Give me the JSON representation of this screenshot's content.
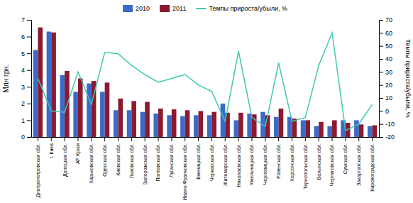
{
  "chart_data": {
    "type": "bar",
    "categories": [
      "Днепропетровская обл.",
      "г. Киев",
      "Донецкая обл.",
      "АР Крым",
      "Харьковская обл.",
      "Одесская обл.",
      "Киевская обл.",
      "Львовская обл.",
      "Запорожская обл.",
      "Полтавская обл.",
      "Луганская обл.",
      "Ивано-Франковская обл.",
      "Винницкая обл.",
      "Черкасская обл.",
      "Житомирская обл.",
      "Николаевская обл.",
      "Хмельницкая обл.",
      "Черновицкая обл.",
      "Ровенская обл.",
      "Херсонская обл.",
      "Тернопольская обл.",
      "Волынская обл.",
      "Черниговская обл.",
      "Сумская обл.",
      "Закарпатская обл.",
      "Кировоградская обл."
    ],
    "series": [
      {
        "name": "2010",
        "color": "#3b6bc9",
        "values": [
          5.2,
          6.3,
          3.7,
          2.7,
          3.2,
          2.7,
          1.6,
          1.6,
          1.5,
          1.4,
          1.3,
          1.25,
          1.3,
          1.3,
          2.0,
          1.0,
          1.4,
          1.5,
          1.2,
          1.2,
          1.0,
          0.65,
          0.65,
          1.0,
          1.0,
          0.65
        ]
      },
      {
        "name": "2011",
        "color": "#8b1a2e",
        "values": [
          6.55,
          6.25,
          3.95,
          3.5,
          3.35,
          3.25,
          2.3,
          2.15,
          2.1,
          1.7,
          1.65,
          1.6,
          1.55,
          1.5,
          1.45,
          1.45,
          1.35,
          1.3,
          1.7,
          1.1,
          1.0,
          0.9,
          1.0,
          0.85,
          0.75,
          0.7
        ]
      },
      {
        "name": "Темпы прироста/убыли, %",
        "color": "#40c8b0",
        "type": "line",
        "axis": "y2",
        "values": [
          25,
          0,
          -1,
          30,
          5,
          45,
          44,
          35,
          28,
          22,
          25,
          28,
          20,
          15,
          -8,
          46,
          -5,
          -12,
          37,
          -8,
          -5,
          35,
          60,
          -15,
          -10,
          5
        ]
      }
    ],
    "ylabel": "Млн грн.",
    "y2label": "Темпы прироста/убыли, %",
    "ylim": [
      0,
      7
    ],
    "yticks": [
      0,
      1,
      2,
      3,
      4,
      5,
      6,
      7
    ],
    "y2lim": [
      -20,
      70
    ],
    "y2ticks": [
      -20,
      -10,
      0,
      10,
      20,
      30,
      40,
      50,
      60,
      70
    ],
    "legend": "top",
    "grid": false
  }
}
